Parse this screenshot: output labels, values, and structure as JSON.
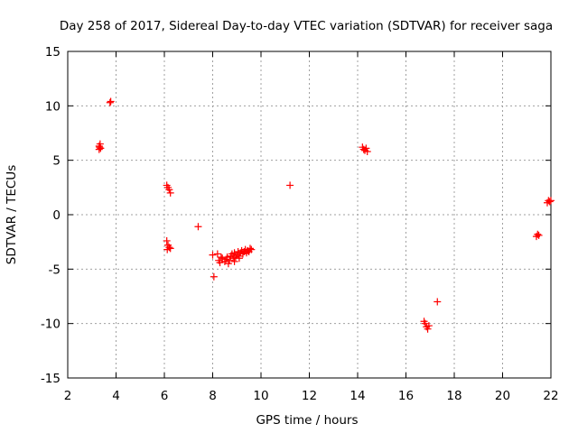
{
  "chart_data": {
    "type": "scatter",
    "title": "Day 258 of 2017, Sidereal Day-to-day VTEC variation (SDTVAR) for receiver saga",
    "xlabel": "GPS time / hours",
    "ylabel": "SDTVAR / TECUs",
    "xlim": [
      2,
      22
    ],
    "ylim": [
      -15,
      15
    ],
    "xticks": [
      2,
      4,
      6,
      8,
      10,
      12,
      14,
      16,
      18,
      20,
      22
    ],
    "yticks": [
      -15,
      -10,
      -5,
      0,
      5,
      10,
      15
    ],
    "grid": true,
    "marker": "plus",
    "series": [
      {
        "name": "SDTVAR",
        "color": "#ff0000",
        "points": [
          [
            3.3,
            6.0
          ],
          [
            3.32,
            6.2
          ],
          [
            3.34,
            6.5
          ],
          [
            3.36,
            6.1
          ],
          [
            3.3,
            6.3
          ],
          [
            3.75,
            10.3
          ],
          [
            3.78,
            10.4
          ],
          [
            6.1,
            2.7
          ],
          [
            6.15,
            2.5
          ],
          [
            6.2,
            2.3
          ],
          [
            6.25,
            2.0
          ],
          [
            6.1,
            -2.4
          ],
          [
            6.15,
            -2.8
          ],
          [
            6.2,
            -3.0
          ],
          [
            6.25,
            -3.1
          ],
          [
            6.12,
            -3.2
          ],
          [
            7.4,
            -1.1
          ],
          [
            8.0,
            -3.7
          ],
          [
            8.05,
            -5.7
          ],
          [
            8.2,
            -3.6
          ],
          [
            8.25,
            -4.2
          ],
          [
            8.3,
            -4.4
          ],
          [
            8.35,
            -3.9
          ],
          [
            8.4,
            -4.0
          ],
          [
            8.5,
            -4.3
          ],
          [
            8.55,
            -4.1
          ],
          [
            8.6,
            -3.9
          ],
          [
            8.7,
            -4.2
          ],
          [
            8.75,
            -3.8
          ],
          [
            8.8,
            -3.6
          ],
          [
            8.85,
            -4.0
          ],
          [
            8.9,
            -3.5
          ],
          [
            8.95,
            -3.9
          ],
          [
            9.0,
            -3.7
          ],
          [
            9.05,
            -3.4
          ],
          [
            9.1,
            -3.8
          ],
          [
            9.15,
            -3.5
          ],
          [
            9.2,
            -3.3
          ],
          [
            9.25,
            -3.6
          ],
          [
            9.3,
            -3.4
          ],
          [
            9.35,
            -3.2
          ],
          [
            9.4,
            -3.5
          ],
          [
            9.45,
            -3.3
          ],
          [
            9.5,
            -3.4
          ],
          [
            9.55,
            -3.1
          ],
          [
            9.6,
            -3.2
          ],
          [
            8.65,
            -4.5
          ],
          [
            8.9,
            -4.3
          ],
          [
            9.1,
            -4.0
          ],
          [
            11.2,
            2.7
          ],
          [
            14.2,
            6.2
          ],
          [
            14.25,
            6.0
          ],
          [
            14.3,
            5.9
          ],
          [
            14.35,
            6.1
          ],
          [
            14.4,
            5.8
          ],
          [
            16.75,
            -9.8
          ],
          [
            16.8,
            -10.0
          ],
          [
            16.85,
            -10.3
          ],
          [
            16.9,
            -10.5
          ],
          [
            16.95,
            -10.2
          ],
          [
            17.3,
            -8.0
          ],
          [
            21.4,
            -2.0
          ],
          [
            21.45,
            -1.8
          ],
          [
            21.5,
            -1.9
          ],
          [
            21.85,
            1.1
          ],
          [
            21.9,
            1.3
          ],
          [
            21.95,
            1.2
          ],
          [
            22.0,
            1.3
          ]
        ]
      }
    ]
  }
}
